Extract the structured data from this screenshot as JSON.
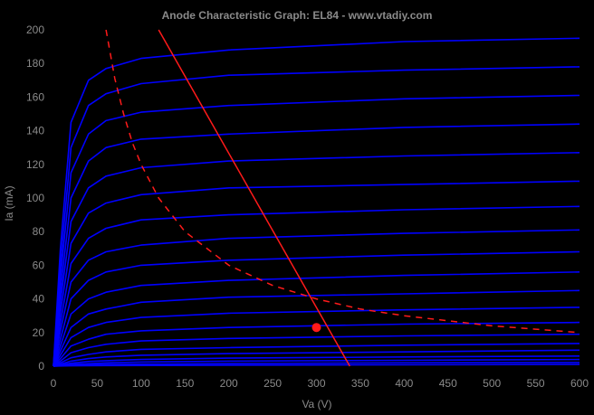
{
  "chart_data": {
    "type": "line",
    "title": "Anode Characteristic Graph: EL84 - www.vtadiy.com",
    "xlabel": "Va (V)",
    "ylabel": "Ia (mA)",
    "xlim": [
      0,
      600
    ],
    "ylim": [
      0,
      200
    ],
    "xticks": [
      "0",
      "50",
      "100",
      "150",
      "200",
      "250",
      "300",
      "350",
      "400",
      "450",
      "500",
      "550",
      "600"
    ],
    "yticks": [
      "0",
      "20",
      "40",
      "60",
      "80",
      "100",
      "120",
      "140",
      "160",
      "180",
      "200"
    ],
    "grid": false,
    "legend": "none",
    "colors": {
      "background": "#000000",
      "curves": "#0000ff",
      "load_line": "#ff1a1a",
      "power_limit": "#ff1a1a",
      "text": "#8a8a8a"
    },
    "series": [
      {
        "values": [
          [
            0,
            0
          ],
          [
            8,
            70
          ],
          [
            20,
            145
          ],
          [
            40,
            170
          ],
          [
            60,
            177
          ],
          [
            100,
            183
          ],
          [
            200,
            188
          ],
          [
            400,
            193
          ],
          [
            600,
            195
          ]
        ]
      },
      {
        "values": [
          [
            0,
            0
          ],
          [
            8,
            60
          ],
          [
            20,
            130
          ],
          [
            40,
            155
          ],
          [
            60,
            162
          ],
          [
            100,
            168
          ],
          [
            200,
            173
          ],
          [
            400,
            176
          ],
          [
            600,
            178
          ]
        ]
      },
      {
        "values": [
          [
            0,
            0
          ],
          [
            8,
            52
          ],
          [
            20,
            115
          ],
          [
            40,
            138
          ],
          [
            60,
            146
          ],
          [
            100,
            151
          ],
          [
            200,
            155
          ],
          [
            400,
            159
          ],
          [
            600,
            161
          ]
        ]
      },
      {
        "values": [
          [
            0,
            0
          ],
          [
            8,
            44
          ],
          [
            20,
            100
          ],
          [
            40,
            122
          ],
          [
            60,
            130
          ],
          [
            100,
            135
          ],
          [
            200,
            138
          ],
          [
            400,
            142
          ],
          [
            600,
            144
          ]
        ]
      },
      {
        "values": [
          [
            0,
            0
          ],
          [
            8,
            38
          ],
          [
            20,
            86
          ],
          [
            40,
            106
          ],
          [
            60,
            113
          ],
          [
            100,
            118
          ],
          [
            200,
            122
          ],
          [
            400,
            125
          ],
          [
            600,
            127
          ]
        ]
      },
      {
        "values": [
          [
            0,
            0
          ],
          [
            8,
            32
          ],
          [
            20,
            73
          ],
          [
            40,
            91
          ],
          [
            60,
            97
          ],
          [
            100,
            102
          ],
          [
            200,
            106
          ],
          [
            400,
            108
          ],
          [
            600,
            110
          ]
        ]
      },
      {
        "values": [
          [
            0,
            0
          ],
          [
            8,
            26
          ],
          [
            20,
            61
          ],
          [
            40,
            76
          ],
          [
            60,
            82
          ],
          [
            100,
            87
          ],
          [
            200,
            90
          ],
          [
            400,
            93
          ],
          [
            600,
            95
          ]
        ]
      },
      {
        "values": [
          [
            0,
            0
          ],
          [
            8,
            21
          ],
          [
            20,
            50
          ],
          [
            40,
            63
          ],
          [
            60,
            68
          ],
          [
            100,
            72
          ],
          [
            200,
            76
          ],
          [
            400,
            79
          ],
          [
            600,
            81
          ]
        ]
      },
      {
        "values": [
          [
            0,
            0
          ],
          [
            8,
            16
          ],
          [
            20,
            40
          ],
          [
            40,
            51
          ],
          [
            60,
            56
          ],
          [
            100,
            60
          ],
          [
            200,
            63
          ],
          [
            400,
            66
          ],
          [
            600,
            68
          ]
        ]
      },
      {
        "values": [
          [
            0,
            0
          ],
          [
            8,
            12
          ],
          [
            20,
            31
          ],
          [
            40,
            40
          ],
          [
            60,
            44
          ],
          [
            100,
            48
          ],
          [
            200,
            51
          ],
          [
            400,
            54
          ],
          [
            600,
            56
          ]
        ]
      },
      {
        "values": [
          [
            0,
            0
          ],
          [
            8,
            9
          ],
          [
            20,
            23
          ],
          [
            40,
            31
          ],
          [
            60,
            34
          ],
          [
            100,
            38
          ],
          [
            200,
            41
          ],
          [
            400,
            43
          ],
          [
            600,
            45
          ]
        ]
      },
      {
        "values": [
          [
            0,
            0
          ],
          [
            8,
            6.5
          ],
          [
            20,
            17
          ],
          [
            40,
            23
          ],
          [
            60,
            26
          ],
          [
            100,
            29
          ],
          [
            200,
            31.5
          ],
          [
            400,
            33.5
          ],
          [
            600,
            35
          ]
        ]
      },
      {
        "values": [
          [
            0,
            0
          ],
          [
            8,
            4.5
          ],
          [
            20,
            12
          ],
          [
            40,
            16
          ],
          [
            60,
            19
          ],
          [
            100,
            21
          ],
          [
            200,
            23
          ],
          [
            400,
            25
          ],
          [
            600,
            26
          ]
        ]
      },
      {
        "values": [
          [
            0,
            0
          ],
          [
            8,
            3
          ],
          [
            20,
            8
          ],
          [
            40,
            11
          ],
          [
            60,
            13
          ],
          [
            100,
            15
          ],
          [
            200,
            16.5
          ],
          [
            400,
            18
          ],
          [
            600,
            19
          ]
        ]
      },
      {
        "values": [
          [
            0,
            0
          ],
          [
            8,
            2
          ],
          [
            20,
            5
          ],
          [
            40,
            7
          ],
          [
            60,
            8.5
          ],
          [
            100,
            10
          ],
          [
            200,
            11
          ],
          [
            400,
            12.5
          ],
          [
            600,
            13.5
          ]
        ]
      },
      {
        "values": [
          [
            0,
            0
          ],
          [
            8,
            1.2
          ],
          [
            20,
            3
          ],
          [
            40,
            4.5
          ],
          [
            60,
            5.5
          ],
          [
            100,
            6.5
          ],
          [
            200,
            7.5
          ],
          [
            400,
            8.5
          ],
          [
            600,
            9.5
          ]
        ]
      },
      {
        "values": [
          [
            0,
            0
          ],
          [
            8,
            0.7
          ],
          [
            20,
            1.8
          ],
          [
            40,
            2.8
          ],
          [
            60,
            3.3
          ],
          [
            100,
            4
          ],
          [
            200,
            4.8
          ],
          [
            400,
            5.5
          ],
          [
            600,
            6
          ]
        ]
      },
      {
        "values": [
          [
            0,
            0
          ],
          [
            8,
            0.4
          ],
          [
            20,
            1
          ],
          [
            40,
            1.5
          ],
          [
            60,
            2
          ],
          [
            100,
            2.5
          ],
          [
            200,
            3
          ],
          [
            400,
            3.5
          ],
          [
            600,
            4
          ]
        ]
      },
      {
        "values": [
          [
            0,
            0
          ],
          [
            20,
            0.5
          ],
          [
            60,
            1
          ],
          [
            200,
            1.5
          ],
          [
            400,
            2
          ],
          [
            600,
            2.2
          ]
        ]
      },
      {
        "values": [
          [
            0,
            0
          ],
          [
            20,
            0.2
          ],
          [
            60,
            0.4
          ],
          [
            200,
            0.6
          ],
          [
            400,
            0.8
          ],
          [
            600,
            1
          ]
        ]
      }
    ],
    "load_line": {
      "values": [
        [
          120,
          200
        ],
        [
          338,
          0
        ]
      ]
    },
    "power_limit": {
      "values": [
        [
          60,
          200
        ],
        [
          70,
          171
        ],
        [
          80,
          150
        ],
        [
          90,
          133
        ],
        [
          100,
          120
        ],
        [
          120,
          100
        ],
        [
          150,
          80
        ],
        [
          200,
          60
        ],
        [
          250,
          48
        ],
        [
          300,
          40
        ],
        [
          350,
          34
        ],
        [
          400,
          30
        ],
        [
          450,
          27
        ],
        [
          500,
          24
        ],
        [
          550,
          22
        ],
        [
          600,
          20
        ]
      ]
    },
    "operating_point": {
      "x": 300,
      "y": 23
    }
  }
}
